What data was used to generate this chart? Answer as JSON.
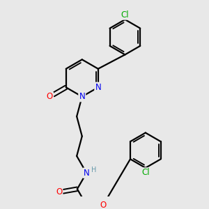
{
  "background_color": "#e8e8e8",
  "bond_color": "#000000",
  "bond_width": 1.6,
  "atom_colors": {
    "N": "#0000ee",
    "O": "#ff0000",
    "Cl": "#00aa00",
    "H": "#6699aa",
    "C": "#000000"
  },
  "font_size": 8.5,
  "figsize": [
    3.0,
    3.0
  ],
  "dpi": 100
}
